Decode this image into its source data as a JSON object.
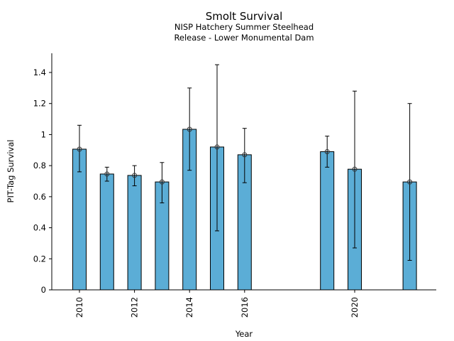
{
  "chart_data": {
    "type": "bar",
    "title": "Smolt Survival",
    "subtitle_lines": [
      "NISP Hatchery Summer Steelhead",
      "Release - Lower Monumental Dam"
    ],
    "xlabel": "Year",
    "ylabel": "PIT-Tag Survival",
    "x": [
      2010,
      2011,
      2012,
      2013,
      2014,
      2015,
      2016,
      2019,
      2020,
      2022
    ],
    "values": [
      0.906,
      0.746,
      0.737,
      0.695,
      1.034,
      0.92,
      0.87,
      0.89,
      0.777,
      0.695
    ],
    "error_low": [
      0.76,
      0.7,
      0.67,
      0.56,
      0.77,
      0.38,
      0.69,
      0.79,
      0.27,
      0.19
    ],
    "error_high": [
      1.06,
      0.79,
      0.8,
      0.82,
      1.3,
      1.45,
      1.04,
      0.99,
      1.28,
      1.2
    ],
    "xlim": [
      2009.0,
      2023.0
    ],
    "ylim": [
      0,
      1.52
    ],
    "x_ticks": [
      2010,
      2012,
      2014,
      2016,
      2020
    ],
    "x_tick_labels": [
      "2010",
      "2012",
      "2014",
      "2016",
      "2020"
    ],
    "y_ticks": [
      0,
      0.2,
      0.4,
      0.6,
      0.8,
      1.0,
      1.2,
      1.4
    ],
    "y_tick_labels": [
      "0",
      "0.2",
      "0.4",
      "0.6",
      "0.8",
      "1",
      "1.2",
      "1.4"
    ],
    "bar_color": "#5badd6",
    "edge_color": "#000000",
    "grid": false,
    "legend": "none"
  }
}
